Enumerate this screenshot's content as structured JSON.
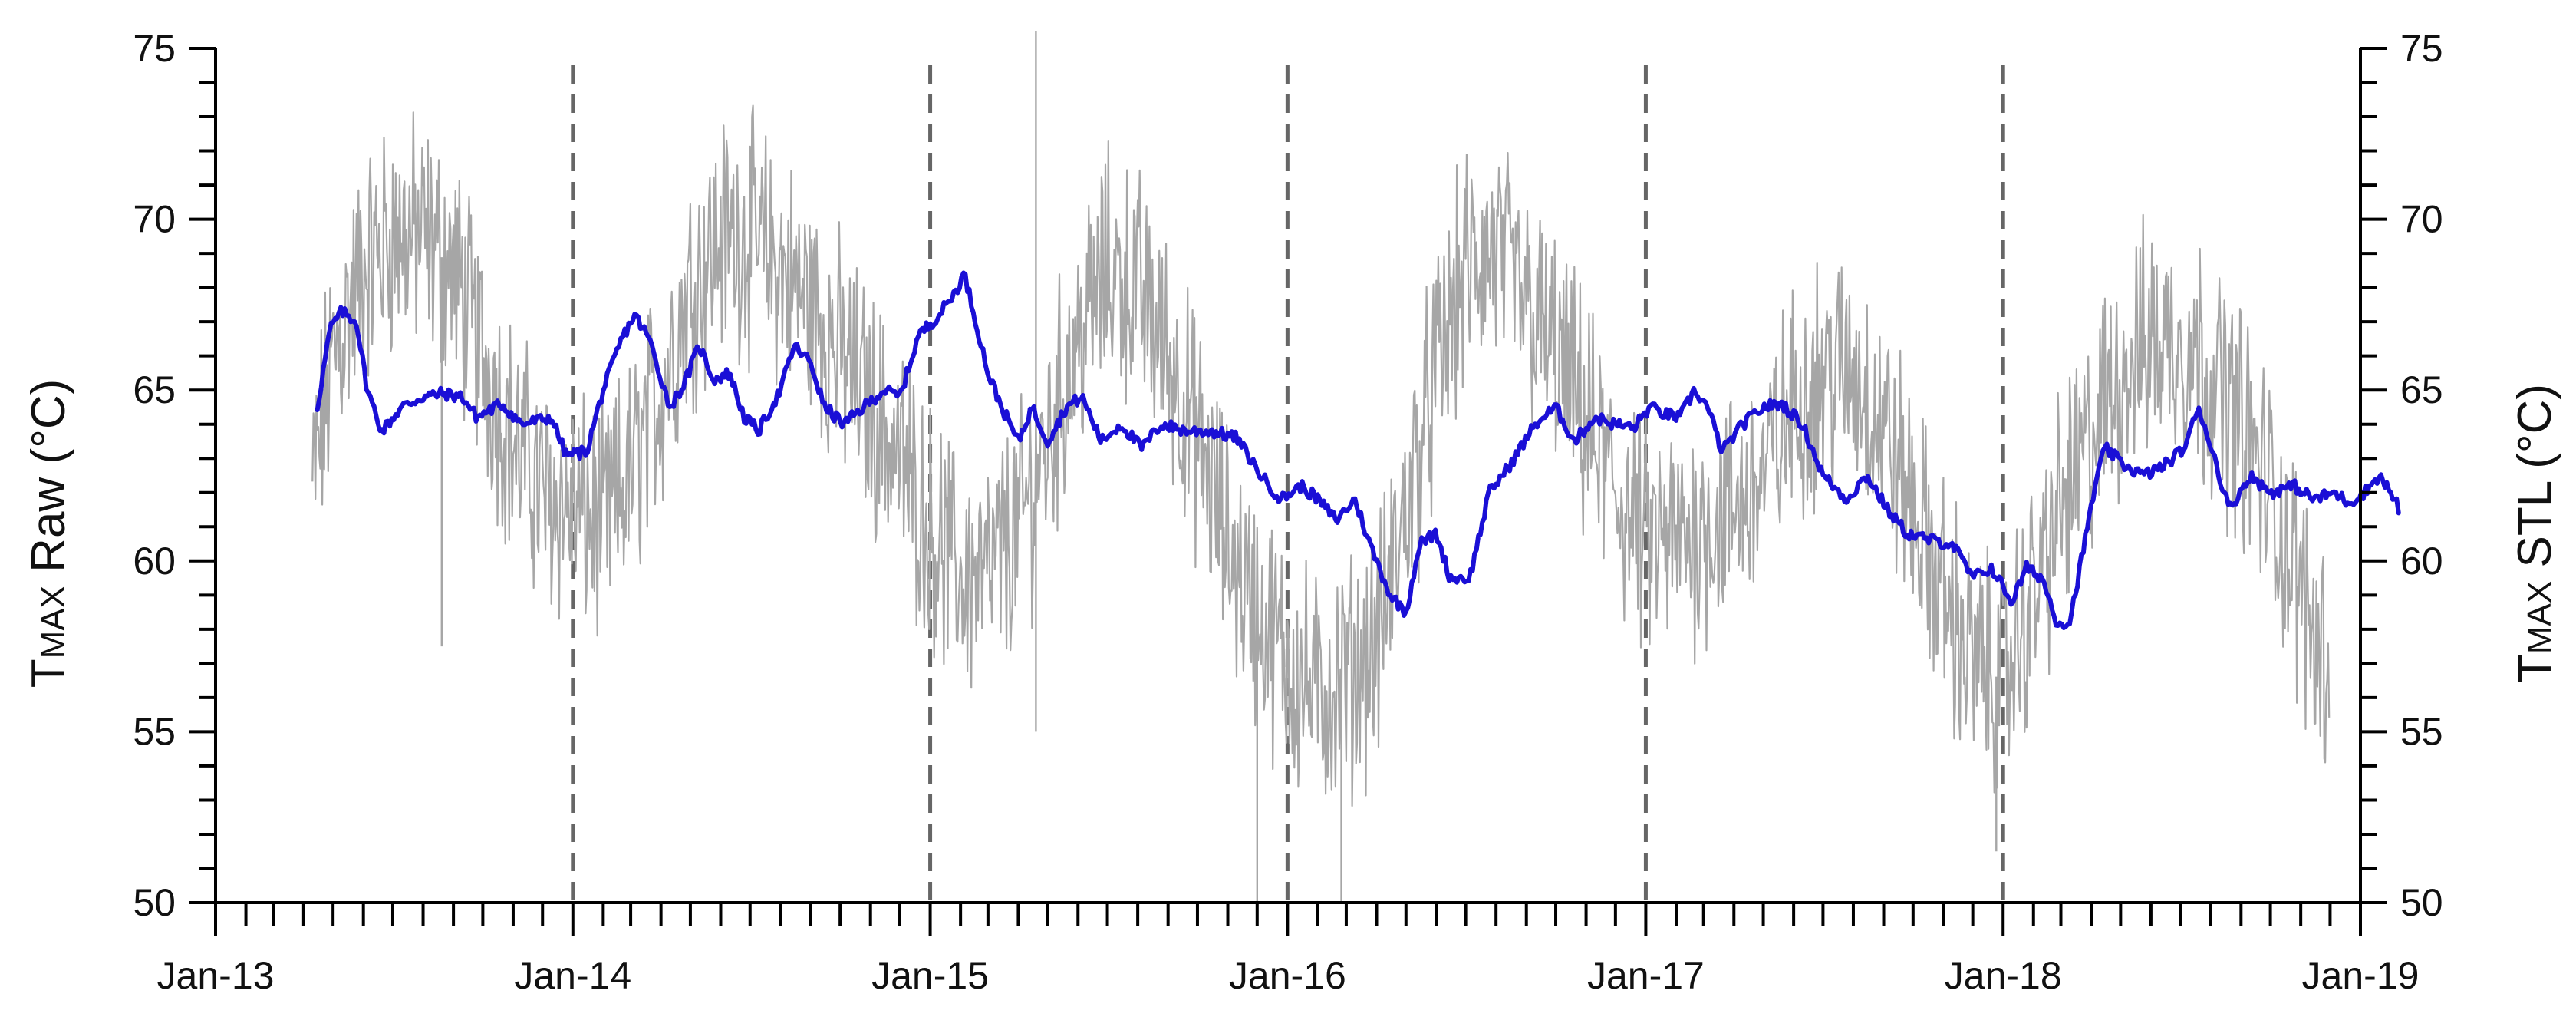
{
  "chart_data": {
    "type": "line",
    "x_axis": {
      "tick_labels": [
        "Jan-13",
        "Jan-14",
        "Jan-15",
        "Jan-16",
        "Jan-17",
        "Jan-18",
        "Jan-19"
      ],
      "range": [
        "2013-01-01",
        "2019-01-01"
      ],
      "minor_ticks": "monthly"
    },
    "y_axis_left": {
      "label_main": "T",
      "label_sub": "MAX",
      "label_rest": " Raw (°C)",
      "range": [
        50,
        75
      ],
      "tick_labels": [
        "50",
        "55",
        "60",
        "65",
        "70",
        "75"
      ]
    },
    "y_axis_right": {
      "label_main": "T",
      "label_sub": "MAX",
      "label_rest": " STL (°C)",
      "range": [
        50,
        75
      ],
      "tick_labels": [
        "50",
        "55",
        "60",
        "65",
        "70",
        "75"
      ]
    },
    "vertical_dashed_lines": [
      "2014-01-01",
      "2015-01-01",
      "2016-01-01",
      "2017-01-01",
      "2018-01-01"
    ],
    "grid": false,
    "legend": "none",
    "series": [
      {
        "id": "raw",
        "color": "#a6a6a6",
        "style": "thin line, high-frequency daily fluctuation",
        "points": [
          [
            "2013-04-10",
            62.0
          ],
          [
            "2013-05-01",
            66.0
          ],
          [
            "2013-06-01",
            68.5
          ],
          [
            "2013-07-01",
            69.5
          ],
          [
            "2013-08-01",
            69.5
          ],
          [
            "2013-09-01",
            68.5
          ],
          [
            "2013-10-01",
            66.0
          ],
          [
            "2013-11-01",
            63.5
          ],
          [
            "2013-12-01",
            62.0
          ],
          [
            "2014-01-01",
            61.5
          ],
          [
            "2014-02-01",
            61.0
          ],
          [
            "2014-03-01",
            62.5
          ],
          [
            "2014-04-01",
            65.0
          ],
          [
            "2014-05-01",
            68.0
          ],
          [
            "2014-06-01",
            69.5
          ],
          [
            "2014-07-01",
            69.5
          ],
          [
            "2014-08-01",
            68.5
          ],
          [
            "2014-09-01",
            67.5
          ],
          [
            "2014-10-01",
            66.0
          ],
          [
            "2014-11-01",
            64.5
          ],
          [
            "2014-12-01",
            63.0
          ],
          [
            "2015-01-01",
            61.0
          ],
          [
            "2015-02-01",
            59.5
          ],
          [
            "2015-03-01",
            59.5
          ],
          [
            "2015-04-01",
            61.0
          ],
          [
            "2015-05-01",
            63.5
          ],
          [
            "2015-06-01",
            66.5
          ],
          [
            "2015-07-01",
            68.5
          ],
          [
            "2015-08-01",
            68.0
          ],
          [
            "2015-09-01",
            66.0
          ],
          [
            "2015-10-01",
            63.5
          ],
          [
            "2015-11-01",
            60.5
          ],
          [
            "2015-12-01",
            58.5
          ],
          [
            "2016-01-01",
            57.0
          ],
          [
            "2016-02-01",
            56.0
          ],
          [
            "2016-03-01",
            56.5
          ],
          [
            "2016-04-01",
            57.5
          ],
          [
            "2016-05-01",
            61.5
          ],
          [
            "2016-06-01",
            65.5
          ],
          [
            "2016-07-01",
            68.5
          ],
          [
            "2016-08-01",
            69.0
          ],
          [
            "2016-09-01",
            67.5
          ],
          [
            "2016-10-01",
            66.0
          ],
          [
            "2016-11-01",
            64.0
          ],
          [
            "2016-12-01",
            62.0
          ],
          [
            "2017-01-01",
            60.5
          ],
          [
            "2017-02-01",
            60.5
          ],
          [
            "2017-03-01",
            61.0
          ],
          [
            "2017-04-01",
            61.5
          ],
          [
            "2017-05-01",
            62.5
          ],
          [
            "2017-06-01",
            64.5
          ],
          [
            "2017-07-01",
            65.5
          ],
          [
            "2017-08-01",
            65.5
          ],
          [
            "2017-09-01",
            64.0
          ],
          [
            "2017-10-01",
            61.5
          ],
          [
            "2017-11-01",
            59.0
          ],
          [
            "2017-12-01",
            57.0
          ],
          [
            "2018-01-01",
            56.5
          ],
          [
            "2018-02-01",
            59.0
          ],
          [
            "2018-03-01",
            61.5
          ],
          [
            "2018-04-01",
            63.5
          ],
          [
            "2018-05-01",
            65.5
          ],
          [
            "2018-06-01",
            66.5
          ],
          [
            "2018-07-01",
            66.5
          ],
          [
            "2018-08-01",
            65.5
          ],
          [
            "2018-09-01",
            64.0
          ],
          [
            "2018-10-01",
            62.0
          ],
          [
            "2018-11-01",
            59.0
          ],
          [
            "2018-11-30",
            57.0
          ]
        ],
        "noise_amplitude": 2.8,
        "spikes": [
          [
            "2015-04-19",
            75.5
          ],
          [
            "2015-04-19",
            55.0
          ],
          [
            "2015-12-01",
            50.0
          ],
          [
            "2016-02-25",
            50.0
          ],
          [
            "2017-12-25",
            51.5
          ],
          [
            "2013-08-20",
            57.5
          ]
        ]
      },
      {
        "id": "stl",
        "color": "#1a0fd6",
        "style": "thick line",
        "points": [
          [
            "2013-04-15",
            64.5
          ],
          [
            "2013-04-28",
            66.8
          ],
          [
            "2013-05-10",
            67.3
          ],
          [
            "2013-05-25",
            67.0
          ],
          [
            "2013-06-05",
            65.0
          ],
          [
            "2013-06-20",
            63.8
          ],
          [
            "2013-07-10",
            64.5
          ],
          [
            "2013-08-01",
            64.8
          ],
          [
            "2013-08-20",
            64.9
          ],
          [
            "2013-09-10",
            64.8
          ],
          [
            "2013-09-25",
            64.2
          ],
          [
            "2013-10-20",
            64.6
          ],
          [
            "2013-11-10",
            64.0
          ],
          [
            "2013-12-10",
            64.2
          ],
          [
            "2013-12-25",
            63.1
          ],
          [
            "2014-01-15",
            63.2
          ],
          [
            "2014-02-01",
            65.0
          ],
          [
            "2014-02-20",
            66.5
          ],
          [
            "2014-03-05",
            67.2
          ],
          [
            "2014-03-20",
            66.5
          ],
          [
            "2014-04-10",
            64.5
          ],
          [
            "2014-04-25",
            65.2
          ],
          [
            "2014-05-10",
            66.3
          ],
          [
            "2014-05-25",
            65.3
          ],
          [
            "2014-06-10",
            65.5
          ],
          [
            "2014-06-25",
            64.2
          ],
          [
            "2014-07-10",
            63.8
          ],
          [
            "2014-08-01",
            65.0
          ],
          [
            "2014-08-15",
            66.3
          ],
          [
            "2014-09-01",
            65.8
          ],
          [
            "2014-09-15",
            64.5
          ],
          [
            "2014-10-05",
            64.0
          ],
          [
            "2014-10-25",
            64.5
          ],
          [
            "2014-11-15",
            65.0
          ],
          [
            "2014-12-01",
            64.8
          ],
          [
            "2014-12-20",
            66.6
          ],
          [
            "2015-01-10",
            67.2
          ],
          [
            "2015-01-25",
            67.8
          ],
          [
            "2015-02-05",
            68.4
          ],
          [
            "2015-02-20",
            66.6
          ],
          [
            "2015-03-01",
            65.5
          ],
          [
            "2015-03-15",
            64.5
          ],
          [
            "2015-04-01",
            63.5
          ],
          [
            "2015-04-15",
            64.5
          ],
          [
            "2015-05-01",
            63.5
          ],
          [
            "2015-05-20",
            64.5
          ],
          [
            "2015-06-05",
            64.8
          ],
          [
            "2015-06-25",
            63.5
          ],
          [
            "2015-07-15",
            64.0
          ],
          [
            "2015-08-05",
            63.3
          ],
          [
            "2015-08-25",
            64.0
          ],
          [
            "2015-09-20",
            63.8
          ],
          [
            "2015-10-15",
            63.8
          ],
          [
            "2015-11-10",
            63.6
          ],
          [
            "2015-12-05",
            62.5
          ],
          [
            "2015-12-25",
            61.8
          ],
          [
            "2016-01-15",
            62.2
          ],
          [
            "2016-02-01",
            61.8
          ],
          [
            "2016-02-20",
            61.2
          ],
          [
            "2016-03-10",
            61.8
          ],
          [
            "2016-03-25",
            60.5
          ],
          [
            "2016-04-15",
            59.0
          ],
          [
            "2016-05-01",
            58.5
          ],
          [
            "2016-05-15",
            60.5
          ],
          [
            "2016-06-01",
            60.8
          ],
          [
            "2016-06-15",
            59.5
          ],
          [
            "2016-07-05",
            59.5
          ],
          [
            "2016-07-25",
            62.0
          ],
          [
            "2016-08-15",
            62.8
          ],
          [
            "2016-09-10",
            64.0
          ],
          [
            "2016-10-01",
            64.5
          ],
          [
            "2016-10-20",
            63.5
          ],
          [
            "2016-11-10",
            64.2
          ],
          [
            "2016-12-01",
            64.0
          ],
          [
            "2016-12-20",
            63.9
          ],
          [
            "2017-01-05",
            64.5
          ],
          [
            "2017-01-20",
            64.3
          ],
          [
            "2017-02-05",
            64.2
          ],
          [
            "2017-02-20",
            65.0
          ],
          [
            "2017-03-05",
            64.5
          ],
          [
            "2017-03-20",
            63.2
          ],
          [
            "2017-04-10",
            64.0
          ],
          [
            "2017-05-01",
            64.5
          ],
          [
            "2017-05-20",
            64.6
          ],
          [
            "2017-06-10",
            64.0
          ],
          [
            "2017-07-01",
            62.5
          ],
          [
            "2017-07-25",
            61.8
          ],
          [
            "2017-08-15",
            62.5
          ],
          [
            "2017-09-05",
            61.5
          ],
          [
            "2017-09-25",
            60.8
          ],
          [
            "2017-10-20",
            60.6
          ],
          [
            "2017-11-10",
            60.5
          ],
          [
            "2017-12-01",
            59.5
          ],
          [
            "2017-12-20",
            59.8
          ],
          [
            "2018-01-10",
            58.8
          ],
          [
            "2018-01-25",
            59.8
          ],
          [
            "2018-02-10",
            59.5
          ],
          [
            "2018-02-25",
            58.2
          ],
          [
            "2018-03-10",
            58.2
          ],
          [
            "2018-03-25",
            60.5
          ],
          [
            "2018-04-05",
            62.2
          ],
          [
            "2018-04-15",
            63.3
          ],
          [
            "2018-05-05",
            62.8
          ],
          [
            "2018-05-25",
            62.5
          ],
          [
            "2018-06-15",
            62.8
          ],
          [
            "2018-07-05",
            63.3
          ],
          [
            "2018-07-20",
            64.5
          ],
          [
            "2018-08-05",
            63.0
          ],
          [
            "2018-08-20",
            61.5
          ],
          [
            "2018-09-10",
            62.5
          ],
          [
            "2018-10-01",
            62.0
          ],
          [
            "2018-10-25",
            62.2
          ],
          [
            "2018-11-15",
            61.8
          ],
          [
            "2018-12-05",
            62.0
          ],
          [
            "2018-12-20",
            61.7
          ],
          [
            "2019-01-05",
            62.0
          ],
          [
            "2019-01-20",
            62.5
          ],
          [
            "2019-02-01",
            62.0
          ],
          [
            "2019-02-10",
            61.5
          ]
        ]
      }
    ]
  }
}
